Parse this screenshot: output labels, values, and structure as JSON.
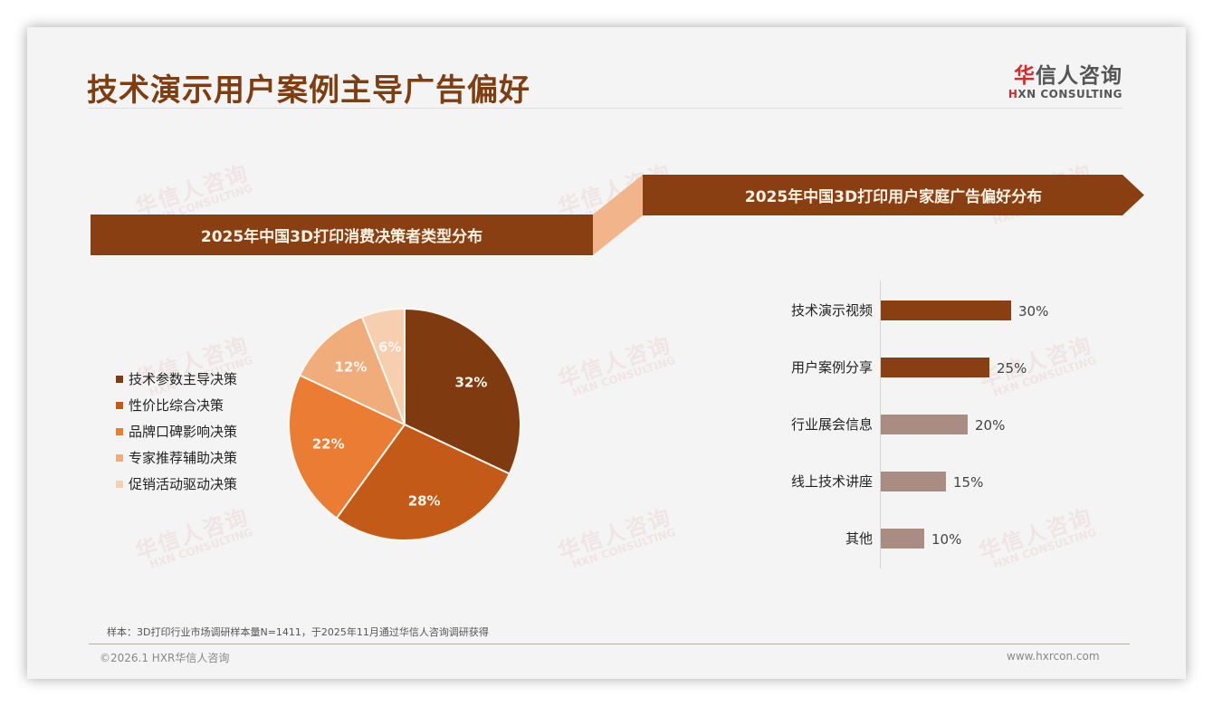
{
  "header": {
    "title": "技术演示用户案例主导广告偏好",
    "logo_cn_first": "华",
    "logo_cn_rest": "信人咨询",
    "logo_en_first": "H",
    "logo_en_rest": "XN CONSULTING"
  },
  "watermark": {
    "cn": "华信人咨询",
    "en": "HXN CONSULTING"
  },
  "left_panel": {
    "banner": "2025年中国3D打印消费决策者类型分布",
    "legend": [
      {
        "label": "技术参数主导决策",
        "color": "#7f3a10"
      },
      {
        "label": "性价比综合决策",
        "color": "#c45a18"
      },
      {
        "label": "品牌口碑影响决策",
        "color": "#ea7c34"
      },
      {
        "label": "专家推荐辅助决策",
        "color": "#f1ac7c"
      },
      {
        "label": "促销活动驱动决策",
        "color": "#f6cfb1"
      }
    ]
  },
  "right_panel": {
    "banner": "2025年中国3D打印用户家庭广告偏好分布"
  },
  "colors": {
    "banner": "#8a3f12",
    "connector": "#f2b48a",
    "bar_top": "#8a3f12",
    "bar_other": "#a98c82",
    "title": "#7f3d10"
  },
  "chart_data": [
    {
      "type": "pie",
      "title": "2025年中国3D打印消费决策者类型分布",
      "categories": [
        "技术参数主导决策",
        "性价比综合决策",
        "品牌口碑影响决策",
        "专家推荐辅助决策",
        "促销活动驱动决策"
      ],
      "values": [
        32,
        28,
        22,
        12,
        6
      ],
      "labels": [
        "32%",
        "28%",
        "22%",
        "12%",
        "6%"
      ],
      "colors": [
        "#7f3a10",
        "#c45a18",
        "#ea7c34",
        "#f1ac7c",
        "#f6cfb1"
      ],
      "legend_position": "left"
    },
    {
      "type": "bar",
      "orientation": "horizontal",
      "title": "2025年中国3D打印用户家庭广告偏好分布",
      "categories": [
        "技术演示视频",
        "用户案例分享",
        "行业展会信息",
        "线上技术讲座",
        "其他"
      ],
      "values": [
        30,
        25,
        20,
        15,
        10
      ],
      "labels": [
        "30%",
        "25%",
        "20%",
        "15%",
        "10%"
      ],
      "colors": [
        "#8a3f12",
        "#8a3f12",
        "#a98c82",
        "#a98c82",
        "#a98c82"
      ],
      "grid": false
    }
  ],
  "footer": {
    "note": "样本：3D打印行业市场调研样本量N=1411，于2025年11月通过华信人咨询调研获得",
    "copyright": "©2026.1 HXR华信人咨询",
    "website": "www.hxrcon.com"
  }
}
